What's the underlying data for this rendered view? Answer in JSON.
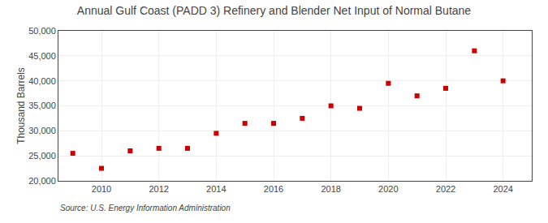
{
  "chart_data": {
    "type": "scatter",
    "title": "Annual Gulf Coast (PADD 3) Refinery and Blender Net Input of Normal Butane",
    "ylabel": "Thousand Barrels",
    "source": "Source: U.S. Energy Information Administration",
    "x": [
      2009,
      2010,
      2011,
      2012,
      2013,
      2014,
      2015,
      2016,
      2017,
      2018,
      2019,
      2020,
      2021,
      2022,
      2023,
      2024
    ],
    "values": [
      25500,
      22500,
      26000,
      26500,
      26500,
      29500,
      31500,
      31500,
      32500,
      35000,
      34500,
      39500,
      37000,
      38500,
      46000,
      40000
    ],
    "color": "#CC0000",
    "marker": "square",
    "xlim": [
      2008.5,
      2025.0
    ],
    "xticks": [
      2010,
      2012,
      2014,
      2016,
      2018,
      2020,
      2022,
      2024
    ],
    "ylim": [
      20000,
      50000
    ],
    "yticks": [
      {
        "value": 20000,
        "label": "20,000"
      },
      {
        "value": 25000,
        "label": "25,000"
      },
      {
        "value": 30000,
        "label": "30,000"
      },
      {
        "value": 35000,
        "label": "35,000"
      },
      {
        "value": 40000,
        "label": "40,000"
      },
      {
        "value": 45000,
        "label": "45,000"
      },
      {
        "value": 50000,
        "label": "50,000"
      }
    ],
    "grid": true
  }
}
